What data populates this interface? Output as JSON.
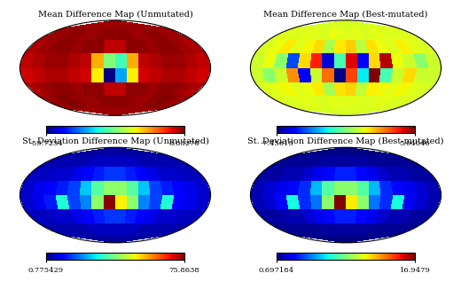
{
  "chart_data": [
    {
      "type": "heatmap",
      "title": "Mean Difference Map (Unmutated)",
      "tick_labels": false,
      "grid": false,
      "cells": [
        [
          7,
          7,
          7,
          7,
          7,
          7,
          7,
          7,
          7,
          7,
          7,
          7,
          7,
          7,
          7,
          7
        ],
        [
          7,
          7,
          8,
          8,
          7,
          7,
          8,
          8,
          8,
          8,
          7,
          7,
          8,
          8,
          7,
          7
        ],
        [
          6,
          7,
          8,
          8,
          7,
          8,
          8,
          5,
          5,
          8,
          8,
          7,
          8,
          8,
          7,
          6
        ],
        [
          5,
          6,
          7,
          7,
          6,
          5,
          -10,
          -25,
          -30,
          -10,
          5,
          6,
          7,
          7,
          6,
          5
        ],
        [
          4,
          5,
          6,
          6,
          5,
          4,
          -15,
          -59.7,
          -40,
          -15,
          4,
          5,
          6,
          6,
          5,
          4
        ],
        [
          6,
          7,
          8,
          8,
          7,
          8,
          8,
          5,
          5,
          8,
          8,
          7,
          8,
          8,
          7,
          6
        ],
        [
          7,
          8,
          8.8,
          8,
          7,
          7,
          8,
          8,
          8,
          8,
          7,
          7,
          8,
          8.8,
          8,
          7
        ],
        [
          7,
          7,
          7,
          7,
          7,
          7,
          7,
          7,
          7,
          7,
          7,
          7,
          7,
          7,
          7,
          7
        ]
      ],
      "colorbar_range": [
        -59.7254,
        8.83278
      ],
      "colorbar_ticks": [
        -59.7254,
        8.83278
      ]
    },
    {
      "type": "heatmap",
      "title": "Mean Difference Map (Best-mutated)",
      "tick_labels": false,
      "grid": false,
      "cells": [
        [
          0.2,
          0.2,
          0.2,
          0.2,
          0.2,
          0.2,
          0.2,
          0.2,
          0.2,
          0.2,
          0.2,
          0.2,
          0.2,
          0.2,
          0.2,
          0.2
        ],
        [
          0.3,
          0.3,
          0.2,
          0.4,
          0.3,
          0.2,
          0.5,
          0.3,
          0.3,
          0.4,
          0.2,
          0.3,
          0.4,
          0.2,
          0.3,
          0.3
        ],
        [
          0.2,
          0.5,
          0.8,
          0.3,
          0.6,
          1.0,
          -0.5,
          0.8,
          1.2,
          -0.3,
          0.9,
          0.5,
          0.3,
          0.7,
          0.4,
          0.2
        ],
        [
          0.0,
          0.5,
          -1.0,
          -5.0,
          1.0,
          3.5,
          -6.5,
          -2.0,
          4.0,
          -6.0,
          1.0,
          4.5,
          0.5,
          0.0,
          -1.0,
          0.0
        ],
        [
          0.0,
          -1.0,
          0.0,
          2.0,
          -6.0,
          0.0,
          2.5,
          -7.4,
          3.0,
          -3.0,
          5.0,
          -2.0,
          0.0,
          1.0,
          0.0,
          0.0
        ],
        [
          0.2,
          0.4,
          0.6,
          0.3,
          0.5,
          0.8,
          -0.6,
          0.9,
          1.1,
          -0.2,
          0.7,
          0.6,
          0.4,
          0.6,
          0.3,
          0.2
        ],
        [
          0.3,
          0.2,
          0.3,
          0.4,
          0.3,
          0.2,
          0.4,
          0.3,
          0.3,
          0.3,
          0.2,
          0.3,
          0.4,
          0.3,
          0.2,
          0.3
        ],
        [
          0.2,
          0.2,
          0.2,
          0.2,
          0.2,
          0.2,
          0.2,
          0.2,
          0.2,
          0.2,
          0.2,
          0.2,
          0.2,
          0.2,
          0.2,
          0.2
        ]
      ],
      "colorbar_range": [
        -7.45615,
        5.04046
      ],
      "colorbar_ticks": [
        -7.45615,
        5.04046
      ]
    },
    {
      "type": "heatmap",
      "title": "St. Deviation Difference Map (Unmutated)",
      "tick_labels": false,
      "grid": false,
      "cells": [
        [
          3,
          3,
          3,
          3,
          3,
          3,
          3,
          3,
          3,
          3,
          3,
          3,
          3,
          3,
          3,
          3
        ],
        [
          4,
          4,
          4,
          4,
          4,
          5,
          5,
          5,
          5,
          5,
          5,
          4,
          4,
          4,
          4,
          4
        ],
        [
          5,
          5,
          6,
          6,
          8,
          10,
          12,
          14,
          14,
          12,
          10,
          8,
          6,
          6,
          5,
          5
        ],
        [
          6,
          8,
          10,
          12,
          15,
          25,
          35,
          40,
          40,
          35,
          25,
          15,
          12,
          10,
          8,
          6
        ],
        [
          6,
          8,
          12,
          30,
          15,
          20,
          40,
          75,
          50,
          40,
          20,
          15,
          30,
          10,
          8,
          6
        ],
        [
          5,
          5,
          6,
          6,
          8,
          10,
          12,
          14,
          14,
          12,
          10,
          8,
          6,
          6,
          5,
          5
        ],
        [
          4,
          4,
          4,
          4,
          4,
          5,
          5,
          5,
          5,
          5,
          5,
          4,
          4,
          4,
          4,
          4
        ],
        [
          3,
          3,
          3,
          3,
          3,
          3,
          3,
          3,
          3,
          3,
          3,
          3,
          3,
          3,
          3,
          3
        ]
      ],
      "colorbar_range": [
        0.775429,
        75.8638
      ],
      "colorbar_ticks": [
        0.775429,
        75.8638
      ]
    },
    {
      "type": "heatmap",
      "title": "St. Deviation Difference Map (Best-mutated)",
      "tick_labels": false,
      "grid": false,
      "cells": [
        [
          0.8,
          0.8,
          0.8,
          0.8,
          0.8,
          0.8,
          0.8,
          0.8,
          0.8,
          0.8,
          0.8,
          0.8,
          0.8,
          0.8,
          0.8,
          0.8
        ],
        [
          1.0,
          1.0,
          1.0,
          1.0,
          1.0,
          1.2,
          1.2,
          1.2,
          1.2,
          1.2,
          1.2,
          1.0,
          1.0,
          1.0,
          1.0,
          1.0
        ],
        [
          1.2,
          1.2,
          1.4,
          1.4,
          1.9,
          2.3,
          2.8,
          3.2,
          3.2,
          2.8,
          2.3,
          1.9,
          1.4,
          1.4,
          1.2,
          1.2
        ],
        [
          1.4,
          1.9,
          2.3,
          2.8,
          3.4,
          5.7,
          8.0,
          9.1,
          9.1,
          8.0,
          5.7,
          3.4,
          2.8,
          2.3,
          1.9,
          1.4
        ],
        [
          1.4,
          1.9,
          2.8,
          6.8,
          3.4,
          4.6,
          9.1,
          16.9,
          11.4,
          9.1,
          4.6,
          3.4,
          6.8,
          2.3,
          1.9,
          1.4
        ],
        [
          1.2,
          1.2,
          1.4,
          1.4,
          1.9,
          2.3,
          2.8,
          3.2,
          3.2,
          2.8,
          2.3,
          1.9,
          1.4,
          1.4,
          1.2,
          1.2
        ],
        [
          1.0,
          1.0,
          1.0,
          1.0,
          1.0,
          1.2,
          1.2,
          1.2,
          1.2,
          1.2,
          1.2,
          1.0,
          1.0,
          1.0,
          1.0,
          1.0
        ],
        [
          0.8,
          0.8,
          0.8,
          0.8,
          0.8,
          0.8,
          0.8,
          0.8,
          0.8,
          0.8,
          0.8,
          0.8,
          0.8,
          0.8,
          0.8,
          0.8
        ]
      ],
      "colorbar_range": [
        0.697184,
        16.9479
      ],
      "colorbar_ticks": [
        0.697184,
        16.9479
      ]
    }
  ]
}
